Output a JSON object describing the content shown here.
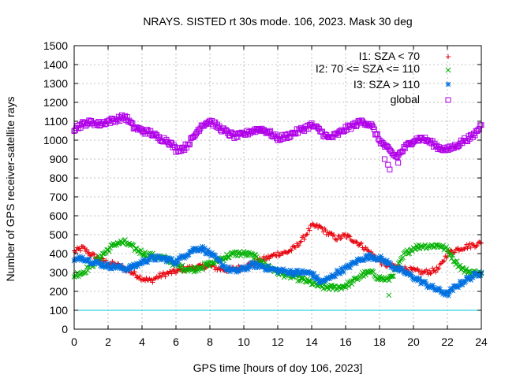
{
  "chart_data": {
    "type": "scatter",
    "title": "NRAYS. SISTED rt 30s mode. 106, 2023. Mask 30 deg",
    "xlabel": "GPS time [hours of doy 106, 2023]",
    "ylabel": "Number of GPS receiver-satellite rays",
    "xlim": [
      0,
      24
    ],
    "ylim": [
      0,
      1500
    ],
    "xticks": [
      0,
      2,
      4,
      6,
      8,
      10,
      12,
      14,
      16,
      18,
      20,
      22,
      24
    ],
    "yticks": [
      0,
      100,
      200,
      300,
      400,
      500,
      600,
      700,
      800,
      900,
      1000,
      1100,
      1200,
      1300,
      1400,
      1500
    ],
    "grid": true,
    "legend_position": "top-right",
    "reference_line": {
      "y": 100,
      "color": "#00c8d8"
    },
    "series": [
      {
        "name": "I1: SZA < 70",
        "color": "#e8000b",
        "marker": "plus",
        "x": [
          0,
          0.5,
          1,
          1.5,
          2,
          2.5,
          3,
          3.5,
          4,
          4.5,
          5,
          5.5,
          6,
          6.5,
          7,
          7.5,
          8,
          8.5,
          9,
          9.5,
          10,
          10.5,
          11,
          11.5,
          12,
          12.5,
          13,
          13.5,
          14,
          14.5,
          15,
          15.5,
          16,
          16.5,
          17,
          17.5,
          18,
          18.5,
          19,
          19.5,
          20,
          20.5,
          21,
          21.5,
          22,
          22.5,
          23,
          23.5,
          24
        ],
        "y": [
          410,
          430,
          395,
          370,
          350,
          340,
          320,
          295,
          270,
          255,
          280,
          295,
          305,
          320,
          325,
          330,
          335,
          320,
          315,
          320,
          330,
          345,
          365,
          380,
          400,
          405,
          430,
          480,
          545,
          540,
          505,
          480,
          495,
          470,
          440,
          400,
          360,
          335,
          330,
          320,
          310,
          300,
          305,
          320,
          400,
          420,
          435,
          445,
          455
        ]
      },
      {
        "name": "I2: 70 <= SZA <= 110",
        "color": "#00b000",
        "marker": "cross",
        "x": [
          0,
          0.5,
          1,
          1.5,
          2,
          2.5,
          3,
          3.5,
          4,
          4.5,
          5,
          5.5,
          6,
          6.5,
          7,
          7.5,
          8,
          8.5,
          9,
          9.5,
          10,
          10.5,
          11,
          11.5,
          12,
          12.5,
          13,
          13.5,
          14,
          14.5,
          15,
          15.5,
          16,
          16.5,
          17,
          17.5,
          18,
          18.5,
          19,
          19.5,
          20,
          20.5,
          21,
          21.5,
          22,
          22.5,
          23,
          23.5,
          24
        ],
        "y": [
          285,
          300,
          335,
          380,
          420,
          455,
          460,
          430,
          405,
          390,
          380,
          370,
          340,
          320,
          315,
          330,
          345,
          365,
          385,
          400,
          400,
          390,
          360,
          330,
          300,
          285,
          275,
          260,
          245,
          225,
          220,
          220,
          230,
          255,
          290,
          300,
          270,
          260,
          315,
          400,
          430,
          440,
          440,
          445,
          420,
          355,
          310,
          300,
          295
        ]
      },
      {
        "name": "I3: SZA > 110",
        "color": "#0070e0",
        "marker": "star",
        "x": [
          0,
          0.5,
          1,
          1.5,
          2,
          2.5,
          3,
          3.5,
          4,
          4.5,
          5,
          5.5,
          6,
          6.5,
          7,
          7.5,
          8,
          8.5,
          9,
          9.5,
          10,
          10.5,
          11,
          11.5,
          12,
          12.5,
          13,
          13.5,
          14,
          14.5,
          15,
          15.5,
          16,
          16.5,
          17,
          17.5,
          18,
          18.5,
          19,
          19.5,
          20,
          20.5,
          21,
          21.5,
          22,
          22.5,
          23,
          23.5,
          24
        ],
        "y": [
          360,
          380,
          360,
          345,
          335,
          330,
          320,
          330,
          355,
          375,
          375,
          370,
          355,
          390,
          420,
          430,
          400,
          360,
          320,
          305,
          320,
          340,
          335,
          320,
          310,
          305,
          300,
          300,
          295,
          250,
          265,
          300,
          320,
          350,
          375,
          385,
          375,
          350,
          320,
          300,
          275,
          250,
          225,
          205,
          185,
          225,
          255,
          280,
          300
        ]
      },
      {
        "name": "global",
        "color": "#b000e8",
        "marker": "square",
        "x": [
          0,
          0.5,
          1,
          1.5,
          2,
          2.5,
          3,
          3.5,
          4,
          4.5,
          5,
          5.5,
          6,
          6.5,
          7,
          7.5,
          8,
          8.5,
          9,
          9.5,
          10,
          10.5,
          11,
          11.5,
          12,
          12.5,
          13,
          13.5,
          14,
          14.5,
          15,
          15.5,
          16,
          16.5,
          17,
          17.5,
          18,
          18.5,
          19,
          19.5,
          20,
          20.5,
          21,
          21.5,
          22,
          22.5,
          23,
          23.5,
          24
        ],
        "y": [
          1060,
          1085,
          1095,
          1085,
          1100,
          1110,
          1125,
          1070,
          1050,
          1040,
          1010,
          1000,
          950,
          960,
          1010,
          1080,
          1100,
          1070,
          1040,
          1020,
          1030,
          1050,
          1060,
          1040,
          1010,
          1020,
          1040,
          1060,
          1080,
          1050,
          1010,
          1030,
          1060,
          1080,
          1100,
          1080,
          1000,
          950,
          910,
          960,
          1000,
          1010,
          990,
          960,
          950,
          970,
          1000,
          1020,
          1080
        ],
        "outliers": [
          [
            18.3,
            900
          ],
          [
            18.5,
            870
          ],
          [
            18.6,
            845
          ],
          [
            19.1,
            880
          ]
        ]
      }
    ]
  }
}
